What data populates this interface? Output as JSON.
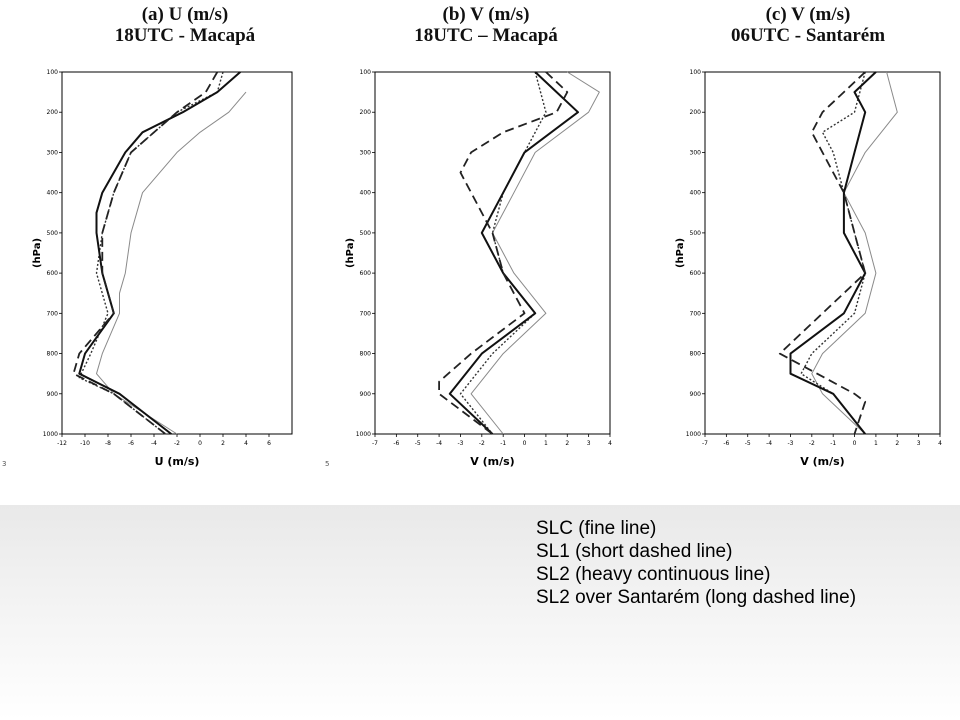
{
  "legend": {
    "lines": [
      "SLC (fine line)",
      "SL1 (short dashed line)",
      "SL2 (heavy continuous line)",
      "SL2 over Santarém (long dashed line)"
    ]
  },
  "corner_marks": [
    "3",
    "5"
  ],
  "colors": {
    "slc": "#8a8a8a",
    "sl1": "#333333",
    "sl2": "#111111",
    "sl2_santarem": "#222222"
  },
  "line_styles": {
    "slc": "fine line",
    "sl1": "short dashed line",
    "sl2": "heavy continuous line",
    "sl2_santarem": "long dashed line"
  },
  "chart_data": [
    {
      "type": "line",
      "title": "(a) U (m/s)",
      "subtitle": "18UTC - Macapá",
      "xlabel": "U (m/s)",
      "ylabel": "(hPa)",
      "xlim": [
        -12,
        8
      ],
      "ylim": [
        1000,
        100
      ],
      "xticks": [
        "-12",
        "-10",
        "-8",
        "-6",
        "-4",
        "-2",
        "0",
        "2",
        "4",
        "6"
      ],
      "xtick_values": [
        -12,
        -10,
        -8,
        -6,
        -4,
        -2,
        0,
        2,
        4,
        6
      ],
      "yticks": [
        "100",
        "200",
        "300",
        "400",
        "500",
        "600",
        "700",
        "800",
        "900",
        "1000"
      ],
      "ytick_values": [
        100,
        200,
        300,
        400,
        500,
        600,
        700,
        800,
        900,
        1000
      ],
      "grid": false,
      "series": [
        {
          "key": "slc",
          "pressure": [
            150,
            200,
            250,
            300,
            400,
            500,
            600,
            650,
            700,
            800,
            850,
            900,
            1000
          ],
          "values": [
            4.0,
            2.5,
            0.0,
            -2.0,
            -5.0,
            -6.0,
            -6.5,
            -7.0,
            -7.0,
            -8.5,
            -9.0,
            -7.5,
            -2.0
          ]
        },
        {
          "key": "sl1",
          "pressure": [
            100,
            150,
            200,
            250,
            300,
            400,
            500,
            600,
            700,
            800,
            860,
            900,
            1000
          ],
          "values": [
            2.0,
            1.5,
            -2.0,
            -4.0,
            -6.0,
            -7.5,
            -8.5,
            -9.0,
            -8.0,
            -9.5,
            -10.5,
            -7.5,
            -3.0
          ]
        },
        {
          "key": "sl2",
          "pressure": [
            100,
            150,
            200,
            250,
            300,
            400,
            450,
            500,
            600,
            700,
            800,
            850,
            900,
            1000
          ],
          "values": [
            3.5,
            1.5,
            -1.5,
            -5.0,
            -6.5,
            -8.5,
            -9.0,
            -9.0,
            -8.5,
            -7.5,
            -10.0,
            -10.5,
            -7.0,
            -2.5
          ]
        },
        {
          "key": "sl2_santarem",
          "pressure": [
            100,
            150,
            200,
            300,
            400,
            500,
            600,
            700,
            800,
            850,
            900,
            1000
          ],
          "values": [
            1.5,
            0.5,
            -2.0,
            -6.0,
            -7.5,
            -8.5,
            -8.5,
            -7.5,
            -10.5,
            -11.0,
            -7.5,
            -3.0
          ]
        }
      ]
    },
    {
      "type": "line",
      "title": "(b) V (m/s)",
      "subtitle": "18UTC – Macapá",
      "xlabel": "V (m/s)",
      "ylabel": "(hPa)",
      "xlim": [
        -7,
        4
      ],
      "ylim": [
        1000,
        100
      ],
      "xticks": [
        "-7",
        "-6",
        "-5",
        "-4",
        "-3",
        "-2",
        "-1",
        "0",
        "1",
        "2",
        "3",
        "4"
      ],
      "xtick_values": [
        -7,
        -6,
        -5,
        -4,
        -3,
        -2,
        -1,
        0,
        1,
        2,
        3,
        4
      ],
      "yticks": [
        "100",
        "200",
        "300",
        "400",
        "500",
        "600",
        "700",
        "800",
        "900",
        "1000"
      ],
      "ytick_values": [
        100,
        200,
        300,
        400,
        500,
        600,
        700,
        800,
        900,
        1000
      ],
      "grid": false,
      "series": [
        {
          "key": "slc",
          "pressure": [
            100,
            150,
            200,
            300,
            400,
            500,
            600,
            700,
            800,
            900,
            1000
          ],
          "values": [
            2.0,
            3.5,
            3.0,
            0.5,
            -0.5,
            -1.5,
            -0.5,
            1.0,
            -1.0,
            -2.5,
            -1.0
          ]
        },
        {
          "key": "sl1",
          "pressure": [
            100,
            200,
            300,
            400,
            500,
            600,
            700,
            800,
            900,
            1000
          ],
          "values": [
            0.5,
            1.0,
            0.0,
            -1.0,
            -1.5,
            -1.0,
            0.5,
            -1.5,
            -3.0,
            -1.5
          ]
        },
        {
          "key": "sl2",
          "pressure": [
            100,
            150,
            200,
            300,
            400,
            500,
            600,
            700,
            800,
            900,
            1000
          ],
          "values": [
            0.5,
            1.5,
            2.5,
            0.0,
            -1.0,
            -2.0,
            -1.0,
            0.5,
            -2.0,
            -3.5,
            -1.5
          ]
        },
        {
          "key": "sl2_santarem",
          "pressure": [
            100,
            150,
            200,
            250,
            300,
            350,
            500,
            600,
            700,
            800,
            870,
            900,
            1000
          ],
          "values": [
            1.0,
            2.0,
            1.5,
            -1.0,
            -2.5,
            -3.0,
            -1.5,
            -1.0,
            0.0,
            -2.5,
            -4.0,
            -4.0,
            -1.5
          ]
        }
      ]
    },
    {
      "type": "line",
      "title": "(c) V (m/s)",
      "subtitle": "06UTC - Santarém",
      "xlabel": "V (m/s)",
      "ylabel": "(hPa)",
      "xlim": [
        -7,
        4
      ],
      "ylim": [
        1000,
        100
      ],
      "xticks": [
        "-7",
        "-6",
        "-5",
        "-4",
        "-3",
        "-2",
        "-1",
        "0",
        "1",
        "2",
        "3",
        "4"
      ],
      "xtick_values": [
        -7,
        -6,
        -5,
        -4,
        -3,
        -2,
        -1,
        0,
        1,
        2,
        3,
        4
      ],
      "yticks": [
        "100",
        "200",
        "300",
        "400",
        "500",
        "600",
        "700",
        "800",
        "900",
        "1000"
      ],
      "ytick_values": [
        100,
        200,
        300,
        400,
        500,
        600,
        700,
        800,
        900,
        1000
      ],
      "grid": false,
      "series": [
        {
          "key": "slc",
          "pressure": [
            100,
            200,
            300,
            400,
            500,
            600,
            700,
            800,
            850,
            900,
            1000
          ],
          "values": [
            1.5,
            2.0,
            0.5,
            -0.5,
            0.5,
            1.0,
            0.5,
            -1.5,
            -2.0,
            -1.5,
            0.5
          ]
        },
        {
          "key": "sl1",
          "pressure": [
            100,
            200,
            250,
            300,
            400,
            500,
            600,
            700,
            800,
            850,
            900,
            1000
          ],
          "values": [
            0.5,
            0.0,
            -1.5,
            -1.0,
            -0.5,
            0.0,
            0.5,
            0.0,
            -2.0,
            -2.5,
            -1.0,
            0.5
          ]
        },
        {
          "key": "sl2",
          "pressure": [
            100,
            150,
            200,
            300,
            400,
            500,
            600,
            700,
            800,
            850,
            900,
            1000
          ],
          "values": [
            1.0,
            0.0,
            0.5,
            0.0,
            -0.5,
            -0.5,
            0.5,
            -0.5,
            -3.0,
            -3.0,
            -1.0,
            0.5
          ]
        },
        {
          "key": "sl2_santarem",
          "pressure": [
            100,
            150,
            200,
            250,
            300,
            400,
            500,
            600,
            700,
            800,
            900,
            920,
            1000
          ],
          "values": [
            0.5,
            -0.5,
            -1.5,
            -2.0,
            -1.5,
            -0.5,
            0.0,
            0.5,
            -1.5,
            -3.5,
            0.0,
            0.5,
            0.0
          ]
        }
      ]
    }
  ]
}
